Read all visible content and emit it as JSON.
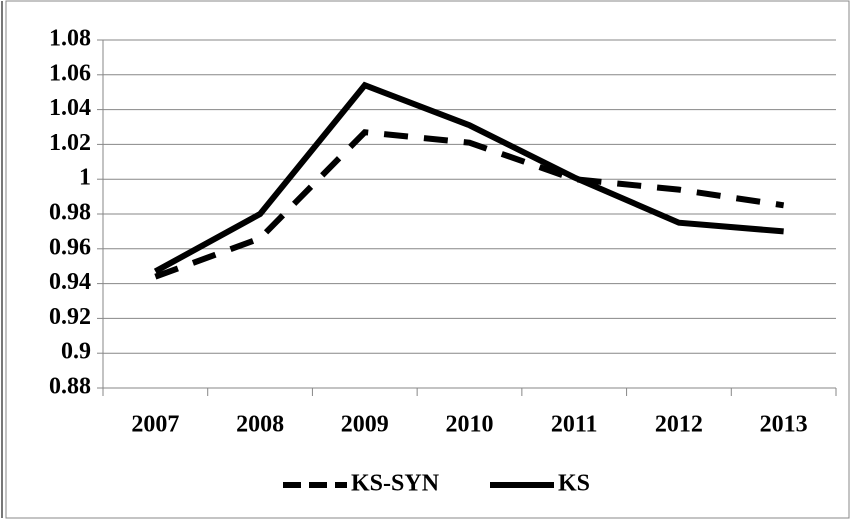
{
  "chart_data": {
    "type": "line",
    "categories": [
      "2007",
      "2008",
      "2009",
      "2010",
      "2011",
      "2012",
      "2013"
    ],
    "series": [
      {
        "name": "KS-SYN",
        "color": "#000000",
        "line_style": "dashed",
        "values": [
          0.944,
          0.966,
          1.027,
          1.021,
          1.0,
          0.994,
          0.985
        ]
      },
      {
        "name": "KS",
        "color": "#000000",
        "line_style": "solid",
        "values": [
          0.947,
          0.98,
          1.054,
          1.031,
          1.001,
          0.975,
          0.97
        ]
      }
    ],
    "ylim": [
      0.88,
      1.08
    ],
    "yticks": [
      0.88,
      0.9,
      0.92,
      0.94,
      0.96,
      0.98,
      1,
      1.02,
      1.04,
      1.06,
      1.08
    ],
    "grid": true,
    "legend": "bottom"
  }
}
